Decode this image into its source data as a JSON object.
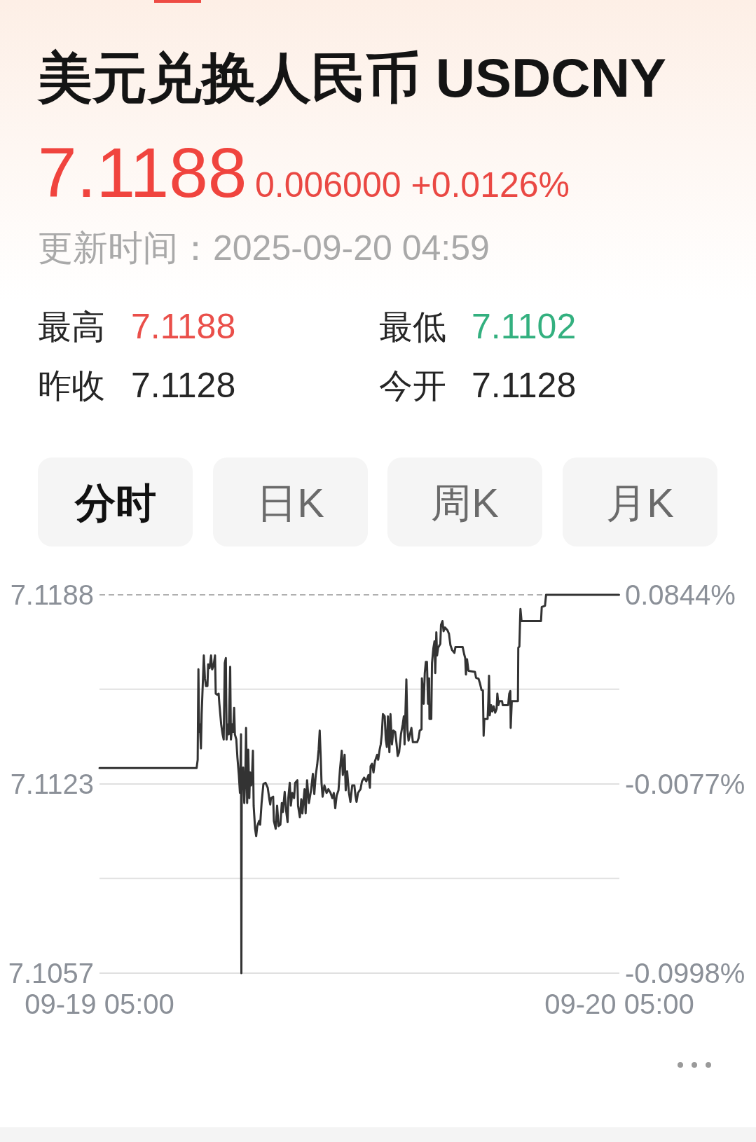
{
  "chart_data": {
    "type": "line",
    "title": "美元兑换人民币 USDCNY",
    "annotations": [
      "7.1188",
      "0.006000 +0.0126%",
      "更新时间：2025-09-20 04:59",
      "最高",
      "7.1188",
      "最低",
      "7.1102",
      "昨收",
      "7.1128",
      "今开",
      "7.1128",
      "分时",
      "日K",
      "周K",
      "月K"
    ],
    "x": [
      "2025-09-19T05:00",
      "2025-09-19T09:29",
      "2025-09-19T09:32",
      "2025-09-19T09:33",
      "2025-09-19T09:34",
      "2025-09-19T09:36",
      "2025-09-19T09:38",
      "2025-09-19T09:41",
      "2025-09-19T09:43",
      "2025-09-19T09:49",
      "2025-09-19T09:52",
      "2025-09-19T09:55",
      "2025-09-19T09:59",
      "2025-09-19T10:01",
      "2025-09-19T10:05",
      "2025-09-19T10:09",
      "2025-09-19T10:12",
      "2025-09-19T10:16",
      "2025-09-19T10:20",
      "2025-09-19T10:22",
      "2025-09-19T10:26",
      "2025-09-19T10:30",
      "2025-09-19T10:32",
      "2025-09-19T10:37",
      "2025-09-19T10:41",
      "2025-09-19T10:44",
      "2025-09-19T10:47",
      "2025-09-19T10:50",
      "2025-09-19T10:52",
      "2025-09-19T10:56",
      "2025-09-19T10:58",
      "2025-09-19T11:02",
      "2025-09-19T11:04",
      "2025-09-19T11:08",
      "2025-09-19T11:10",
      "2025-09-19T11:13",
      "2025-09-19T11:15",
      "2025-09-19T11:19",
      "2025-09-19T11:22",
      "2025-09-19T11:26",
      "2025-09-19T11:29",
      "2025-09-19T11:30",
      "2025-09-19T11:32",
      "2025-09-19T11:33",
      "2025-09-19T11:34",
      "2025-09-19T11:38",
      "2025-09-19T11:41",
      "2025-09-19T11:44",
      "2025-09-19T11:46",
      "2025-09-19T11:49",
      "2025-09-19T11:52",
      "2025-09-19T11:55",
      "2025-09-19T11:57",
      "2025-09-19T12:00",
      "2025-09-19T12:02",
      "2025-09-19T12:05",
      "2025-09-19T12:07",
      "2025-09-19T12:11",
      "2025-09-19T12:14",
      "2025-09-19T12:17",
      "2025-09-19T12:22",
      "2025-09-19T12:25",
      "2025-09-19T12:29",
      "2025-09-19T12:34",
      "2025-09-19T12:40",
      "2025-09-19T12:46",
      "2025-09-19T12:51",
      "2025-09-19T12:53",
      "2025-09-19T12:55",
      "2025-09-19T13:01",
      "2025-09-19T13:03",
      "2025-09-19T13:08",
      "2025-09-19T13:12",
      "2025-09-19T13:16",
      "2025-09-19T13:21",
      "2025-09-19T13:25",
      "2025-09-19T13:28",
      "2025-09-19T13:33",
      "2025-09-19T13:37",
      "2025-09-19T13:41",
      "2025-09-19T13:43",
      "2025-09-19T13:47",
      "2025-09-19T13:50",
      "2025-09-19T13:54",
      "2025-09-19T13:59",
      "2025-09-19T14:02",
      "2025-09-19T14:08",
      "2025-09-19T14:10",
      "2025-09-19T14:15",
      "2025-09-19T14:19",
      "2025-09-19T14:22",
      "2025-09-19T14:28",
      "2025-09-19T14:31",
      "2025-09-19T14:35",
      "2025-09-19T14:40",
      "2025-09-19T14:46",
      "2025-09-19T14:51",
      "2025-09-19T14:55",
      "2025-09-19T14:59",
      "2025-09-19T15:03",
      "2025-09-19T15:07",
      "2025-09-19T15:10",
      "2025-09-19T15:13",
      "2025-09-19T15:15",
      "2025-09-19T15:18",
      "2025-09-19T15:23",
      "2025-09-19T15:29",
      "2025-09-19T15:34",
      "2025-09-19T15:40",
      "2025-09-19T15:45",
      "2025-09-19T15:49",
      "2025-09-19T15:53",
      "2025-09-19T15:57",
      "2025-09-19T16:02",
      "2025-09-19T16:06",
      "2025-09-19T16:11",
      "2025-09-19T16:14",
      "2025-09-19T16:19",
      "2025-09-19T16:22",
      "2025-09-19T16:26",
      "2025-09-19T16:31",
      "2025-09-19T16:35",
      "2025-09-19T16:40",
      "2025-09-19T16:46",
      "2025-09-19T16:49",
      "2025-09-19T16:52",
      "2025-09-19T16:56",
      "2025-09-19T17:03",
      "2025-09-19T17:07",
      "2025-09-19T17:13",
      "2025-09-19T17:19",
      "2025-09-19T17:25",
      "2025-09-19T17:29",
      "2025-09-19T17:31",
      "2025-09-19T17:35",
      "2025-09-19T17:39",
      "2025-09-19T17:43",
      "2025-09-19T17:49",
      "2025-09-19T17:52",
      "2025-09-19T17:56",
      "2025-09-19T17:59",
      "2025-09-19T18:02",
      "2025-09-19T18:05",
      "2025-09-19T18:10",
      "2025-09-19T18:13",
      "2025-09-19T18:16",
      "2025-09-19T18:19",
      "2025-09-19T18:23",
      "2025-09-19T18:26",
      "2025-09-19T18:30",
      "2025-09-19T18:34",
      "2025-09-19T18:39",
      "2025-09-19T18:43",
      "2025-09-19T18:46",
      "2025-09-19T18:50",
      "2025-09-19T18:55",
      "2025-09-19T19:00",
      "2025-09-19T19:03",
      "2025-09-19T19:05",
      "2025-09-19T19:10",
      "2025-09-19T19:13",
      "2025-09-19T19:16",
      "2025-09-19T19:20",
      "2025-09-19T19:24",
      "2025-09-19T19:28",
      "2025-09-19T19:40",
      "2025-09-19T19:44",
      "2025-09-19T19:47",
      "2025-09-19T19:52",
      "2025-09-19T19:53",
      "2025-09-19T19:58",
      "2025-09-19T20:01",
      "2025-09-19T20:04",
      "2025-09-19T20:07",
      "2025-09-19T20:10",
      "2025-09-19T20:13",
      "2025-09-19T20:14",
      "2025-09-19T20:19",
      "2025-09-19T20:21",
      "2025-09-19T20:25",
      "2025-09-19T20:28",
      "2025-09-19T20:30",
      "2025-09-19T20:33",
      "2025-09-19T20:35",
      "2025-09-19T20:38",
      "2025-09-19T20:44",
      "2025-09-19T20:46",
      "2025-09-19T20:50",
      "2025-09-19T20:53",
      "2025-09-19T20:57",
      "2025-09-19T21:04",
      "2025-09-19T21:08",
      "2025-09-19T21:12",
      "2025-09-19T21:17",
      "2025-09-19T21:23",
      "2025-09-19T21:26",
      "2025-09-19T21:46",
      "2025-09-19T21:50",
      "2025-09-19T21:53",
      "2025-09-19T21:55",
      "2025-09-19T21:58",
      "2025-09-19T22:02",
      "2025-09-19T22:20",
      "2025-09-19T22:23",
      "2025-09-19T22:30",
      "2025-09-19T22:34",
      "2025-09-19T22:38",
      "2025-09-19T22:42",
      "2025-09-19T22:44",
      "2025-09-19T22:46",
      "2025-09-19T22:55",
      "2025-09-19T22:57",
      "2025-09-19T22:59",
      "2025-09-19T23:01",
      "2025-09-19T23:05",
      "2025-09-19T23:08",
      "2025-09-19T23:12",
      "2025-09-19T23:16",
      "2025-09-19T23:20",
      "2025-09-19T23:22",
      "2025-09-19T23:25",
      "2025-09-19T23:28",
      "2025-09-19T23:35",
      "2025-09-19T23:37",
      "2025-09-19T23:52",
      "2025-09-19T23:55",
      "2025-09-19T23:58",
      "2025-09-19T23:59",
      "2025-09-20T00:02",
      "2025-09-20T00:19",
      "2025-09-20T00:20",
      "2025-09-20T00:23",
      "2025-09-20T00:25",
      "2025-09-20T00:26",
      "2025-09-20T00:29",
      "2025-09-20T01:23",
      "2025-09-20T01:25",
      "2025-09-20T01:34",
      "2025-09-20T01:37",
      "2025-09-20T04:59"
    ],
    "series": [
      {
        "color": "#333333",
        "values": [
          7.1128,
          7.1128,
          7.11309,
          7.11485,
          7.11622,
          7.11406,
          7.11432,
          7.11348,
          7.11467,
          7.1167,
          7.11591,
          7.11564,
          7.11564,
          7.11639,
          7.11626,
          7.1167,
          7.11622,
          7.11635,
          7.1167,
          7.11538,
          7.11534,
          7.11538,
          7.11503,
          7.11432,
          7.11397,
          7.11379,
          7.11644,
          7.11661,
          7.11379,
          7.11432,
          7.11397,
          7.11631,
          7.11379,
          7.11432,
          7.11406,
          7.11489,
          7.11397,
          7.11379,
          7.11317,
          7.11256,
          7.11194,
          7.11256,
          7.11397,
          7.1057,
          7.11203,
          7.11282,
          7.11159,
          7.11256,
          7.11419,
          7.11159,
          7.11344,
          7.11176,
          7.11265,
          7.1122,
          7.11238,
          7.1134,
          7.1115,
          7.1107,
          7.11044,
          7.11079,
          7.11097,
          7.11084,
          7.11159,
          7.11225,
          7.11229,
          7.11212,
          7.11168,
          7.11154,
          7.11176,
          7.11181,
          7.11097,
          7.1107,
          7.1115,
          7.11079,
          7.11084,
          7.11159,
          7.11128,
          7.11198,
          7.11132,
          7.11093,
          7.11176,
          7.11229,
          7.1115,
          7.11194,
          7.11176,
          7.11229,
          7.11238,
          7.1115,
          7.1111,
          7.11172,
          7.11123,
          7.11207,
          7.11123,
          7.11238,
          7.11159,
          7.11203,
          7.1126,
          7.1119,
          7.11256,
          7.11291,
          7.11344,
          7.1141,
          7.11309,
          7.11229,
          7.11181,
          7.1122,
          7.11194,
          7.11207,
          7.11194,
          7.11176,
          7.11194,
          7.11141,
          7.11185,
          7.11203,
          7.11273,
          7.1134,
          7.11256,
          7.11326,
          7.11203,
          7.11269,
          7.11194,
          7.11163,
          7.1122,
          7.1122,
          7.11185,
          7.11163,
          7.11194,
          7.11207,
          7.11234,
          7.11247,
          7.11234,
          7.11256,
          7.11212,
          7.11287,
          7.11295,
          7.11265,
          7.11304,
          7.11326,
          7.11309,
          7.11344,
          7.11362,
          7.11397,
          7.11467,
          7.11459,
          7.11379,
          7.11353,
          7.11459,
          7.11335,
          7.11467,
          7.11362,
          7.1141,
          7.11406,
          7.11362,
          7.11322,
          7.11335,
          7.11397,
          7.11432,
          7.11459,
          7.11362,
          7.11587,
          7.11414,
          7.11375,
          7.11397,
          7.11419,
          7.1137,
          7.1137,
          7.11384,
          7.1141,
          7.11414,
          7.11591,
          7.11503,
          7.11609,
          7.11648,
          7.11648,
          7.11503,
          7.11591,
          7.1145,
          7.1145,
          7.11644,
          7.11697,
          7.11719,
          7.11609,
          7.1175,
          7.1167,
          7.11697,
          7.1171,
          7.11776,
          7.11789,
          7.11754,
          7.11767,
          7.11757,
          7.11745,
          7.11706,
          7.11688,
          7.11679,
          7.11699,
          7.11699,
          7.11675,
          7.11661,
          7.11604,
          7.11657,
          7.11617,
          7.11613,
          7.11593,
          7.11589,
          7.11573,
          7.11551,
          7.11549,
          7.11392,
          7.1145,
          7.1145,
          7.11512,
          7.116,
          7.11463,
          7.11498,
          7.11476,
          7.11494,
          7.11472,
          7.11485,
          7.11538,
          7.11498,
          7.11512,
          7.11512,
          7.11498,
          7.11498,
          7.11538,
          7.11547,
          7.11419,
          7.11512,
          7.11512,
          7.11697,
          7.11701,
          7.11794,
          7.11831,
          7.11789,
          7.11789,
          7.11838,
          7.11842,
          7.1188,
          7.1188
        ]
      }
    ],
    "xlim": [
      "2025-09-19T05:00",
      "2025-09-20T05:00"
    ],
    "xticks": [
      {
        "value": "2025-09-19T05:00",
        "label": "09-19 05:00"
      },
      {
        "value": "2025-09-20T05:00",
        "label": "09-20 05:00"
      }
    ],
    "ylim": [
      7.1057,
      7.1188
    ],
    "yticks": [
      7.1188,
      {
        "value": 7.11553,
        "label": null
      },
      {
        "value": 7.11225,
        "label": "7.1123"
      },
      {
        "value": 7.10898,
        "label": null
      },
      7.1057
    ],
    "y2lim": [
      -0.0998,
      0.0844
    ],
    "y2ticks": [
      {
        "value": 0.0844,
        "label": "0.0844%"
      },
      {
        "value": -0.0077,
        "label": "-0.0077%"
      },
      {
        "value": -0.0998,
        "label": "-0.0998%"
      }
    ],
    "grid": "y"
  }
}
